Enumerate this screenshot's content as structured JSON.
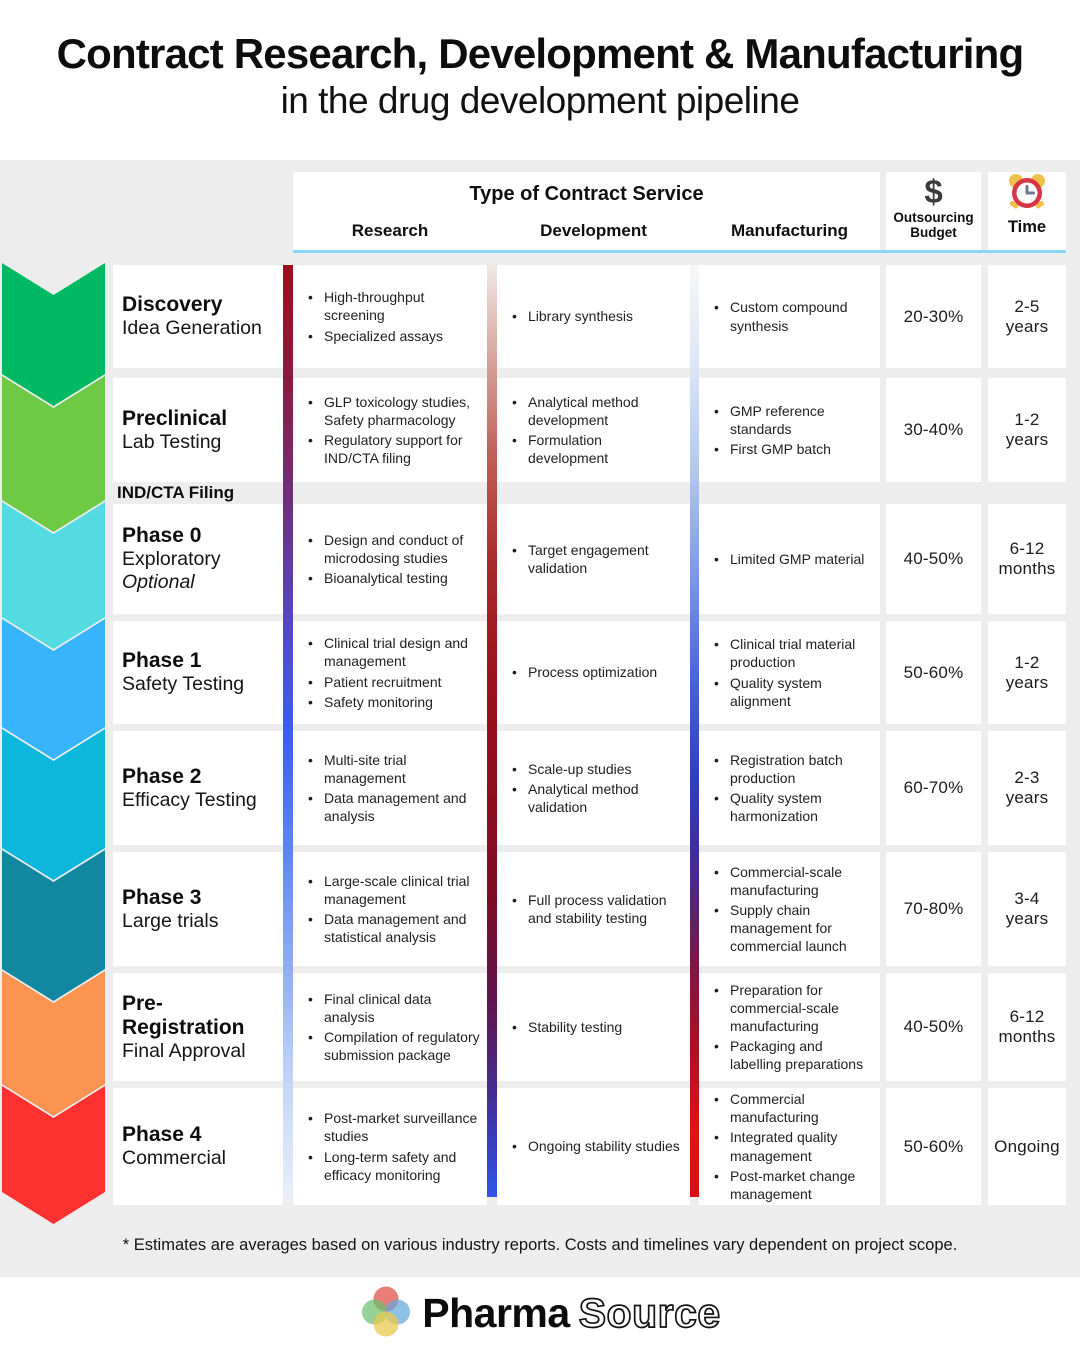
{
  "title": {
    "line1": "Contract Research, Development & Manufacturing",
    "line2": "in the drug development pipeline"
  },
  "table": {
    "header": {
      "group_title": "Type of Contract Service",
      "service_columns": [
        "Research",
        "Development",
        "Manufacturing"
      ],
      "budget_symbol": "$",
      "budget_label": "Outsourcing Budget",
      "time_label": "Time",
      "underline_color": "#87d7f2"
    },
    "milestone_label": "IND/CTA Filing",
    "bar_gradients": [
      [
        "#9e0d1d 0%",
        "#8c1a3f 12%",
        "#6f2f7a 25%",
        "#5546c4 38%",
        "#3c5df2 50%",
        "#5b82f4 62%",
        "#8fadf3 75%",
        "#c4d5f6 88%",
        "#e9eff9 100%"
      ],
      [
        "#f1e8e6 0%",
        "#dcb2ab 8%",
        "#c1625a 20%",
        "#a82a28 32%",
        "#9b101c 45%",
        "#8c0d20 58%",
        "#7c0c26 68%",
        "#5e1653 80%",
        "#41309c 90%",
        "#2f55e8 100%"
      ],
      [
        "#f7f7f7 0%",
        "#dde7f6 10%",
        "#b3c8ee 22%",
        "#7796e3 34%",
        "#4463d6 45%",
        "#2e3fc0 55%",
        "#462a90 65%",
        "#7a1747 75%",
        "#b50f20 85%",
        "#e21313 93%",
        "#d51111 100%"
      ]
    ],
    "rows": [
      {
        "phase_title": "Discovery",
        "phase_subtitle": "Idea Generation",
        "phase_note": "",
        "research": [
          "High-throughput screening",
          "Specialized assays"
        ],
        "development": [
          "Library synthesis"
        ],
        "manufacturing": [
          "Custom compound synthesis"
        ],
        "budget": "20-30%",
        "time": "2-5 years"
      },
      {
        "phase_title": "Preclinical",
        "phase_subtitle": "Lab Testing",
        "phase_note": "",
        "research": [
          "GLP toxicology studies, Safety pharmacology",
          "Regulatory support for IND/CTA filing"
        ],
        "development": [
          "Analytical method development",
          "Formulation development"
        ],
        "manufacturing": [
          "GMP reference standards",
          "First GMP batch"
        ],
        "budget": "30-40%",
        "time": "1-2 years"
      },
      {
        "phase_title": "Phase 0",
        "phase_subtitle": "Exploratory",
        "phase_note": "Optional",
        "research": [
          "Design and conduct of microdosing studies",
          "Bioanalytical testing"
        ],
        "development": [
          "Target engagement validation"
        ],
        "manufacturing": [
          "Limited GMP material"
        ],
        "budget": "40-50%",
        "time": "6-12 months"
      },
      {
        "phase_title": "Phase 1",
        "phase_subtitle": "Safety Testing",
        "phase_note": "",
        "research": [
          "Clinical trial design and management",
          "Patient recruitment",
          "Safety monitoring"
        ],
        "development": [
          "Process optimization"
        ],
        "manufacturing": [
          "Clinical trial material production",
          "Quality system alignment"
        ],
        "budget": "50-60%",
        "time": "1-2 years"
      },
      {
        "phase_title": "Phase 2",
        "phase_subtitle": "Efficacy Testing",
        "phase_note": "",
        "research": [
          "Multi-site trial management",
          "Data management and analysis"
        ],
        "development": [
          "Scale-up studies",
          "Analytical method validation"
        ],
        "manufacturing": [
          "Registration batch production",
          "Quality system harmonization"
        ],
        "budget": "60-70%",
        "time": "2-3 years"
      },
      {
        "phase_title": "Phase 3",
        "phase_subtitle": "Large trials",
        "phase_note": "",
        "research": [
          "Large-scale clinical trial management",
          "Data management and statistical analysis"
        ],
        "development": [
          "Full process validation and stability testing"
        ],
        "manufacturing": [
          "Commercial-scale manufacturing",
          "Supply chain management for commercial launch"
        ],
        "budget": "70-80%",
        "time": "3-4 years"
      },
      {
        "phase_title": "Pre-Registration",
        "phase_subtitle": "Final Approval",
        "phase_note": "",
        "research": [
          "Final clinical data analysis",
          "Compilation of regulatory submission package"
        ],
        "development": [
          "Stability testing"
        ],
        "manufacturing": [
          "Preparation for commercial-scale manufacturing",
          "Packaging and labelling preparations"
        ],
        "budget": "40-50%",
        "time": "6-12 months"
      },
      {
        "phase_title": "Phase 4",
        "phase_subtitle": "Commercial",
        "phase_note": "",
        "research": [
          "Post-market surveillance studies",
          "Long-term safety and efficacy monitoring"
        ],
        "development": [
          "Ongoing stability studies"
        ],
        "manufacturing": [
          "Commercial manufacturing",
          "Integrated quality management",
          "Post-market change management"
        ],
        "budget": "50-60%",
        "time": "Ongoing"
      }
    ]
  },
  "pipeline": {
    "chevron_colors": [
      "#00ba63",
      "#6ec945",
      "#54dbe2",
      "#38b4fc",
      "#0db7db",
      "#1188a0",
      "#fb9351",
      "#fc3130"
    ]
  },
  "footnote": "* Estimates are averages based on various industry reports. Costs and timelines vary dependent on project scope.",
  "logo": {
    "part1": "Pharma",
    "part2": "Source"
  }
}
